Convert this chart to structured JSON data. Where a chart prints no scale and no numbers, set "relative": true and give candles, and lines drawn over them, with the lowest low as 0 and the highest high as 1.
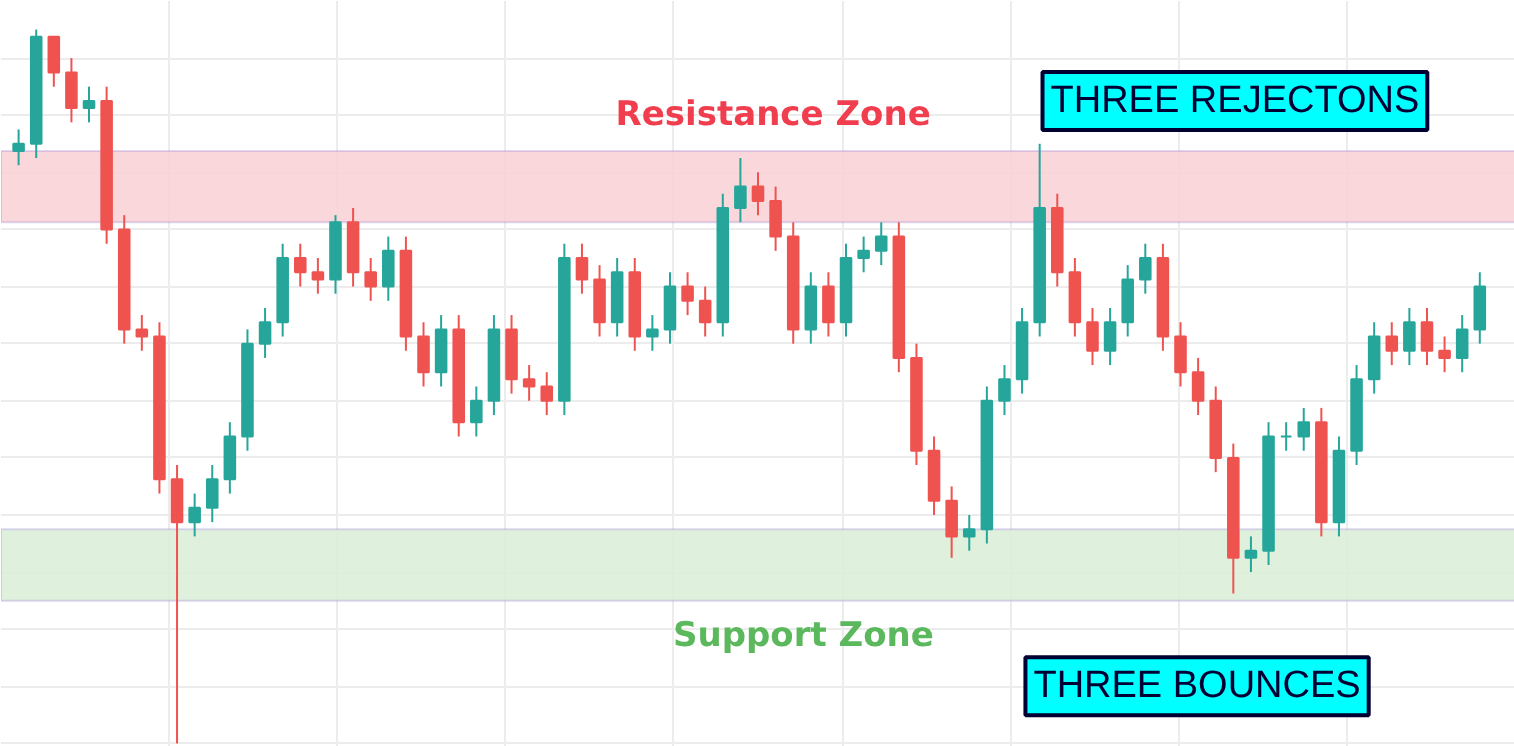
{
  "chart_data": {
    "type": "candlestick",
    "relative": true,
    "categories": [
      null,
      null,
      null,
      null,
      null,
      null,
      null,
      null,
      null,
      null,
      null,
      null,
      null,
      null,
      null,
      null,
      null,
      null,
      null,
      null,
      null,
      null,
      null,
      null,
      null,
      null,
      null,
      null,
      null,
      null,
      null,
      null,
      null,
      null,
      null,
      null,
      null,
      null,
      null,
      null,
      null,
      null,
      null,
      null,
      null,
      null,
      null,
      null,
      null,
      null,
      null,
      null,
      null,
      null,
      null,
      null,
      null,
      null,
      null,
      null,
      null,
      null,
      null,
      null,
      null,
      null,
      null,
      null,
      null,
      null,
      null,
      null,
      null,
      null,
      null,
      null,
      null,
      null,
      null,
      null,
      null,
      null,
      null,
      null
    ],
    "ohlc": [
      [
        0.83,
        0.86,
        0.81,
        0.84
      ],
      [
        0.84,
        1.0,
        0.82,
        0.99
      ],
      [
        0.99,
        0.99,
        0.92,
        0.94
      ],
      [
        0.94,
        0.96,
        0.87,
        0.89
      ],
      [
        0.89,
        0.92,
        0.87,
        0.9
      ],
      [
        0.9,
        0.92,
        0.7,
        0.72
      ],
      [
        0.72,
        0.74,
        0.56,
        0.58
      ],
      [
        0.58,
        0.6,
        0.55,
        0.57
      ],
      [
        0.57,
        0.59,
        0.35,
        0.37
      ],
      [
        0.37,
        0.39,
        0.0,
        0.31
      ],
      [
        0.31,
        0.35,
        0.29,
        0.33
      ],
      [
        0.33,
        0.39,
        0.31,
        0.37
      ],
      [
        0.37,
        0.45,
        0.35,
        0.43
      ],
      [
        0.43,
        0.58,
        0.41,
        0.56
      ],
      [
        0.56,
        0.61,
        0.54,
        0.59
      ],
      [
        0.59,
        0.7,
        0.57,
        0.68
      ],
      [
        0.68,
        0.7,
        0.64,
        0.66
      ],
      [
        0.66,
        0.68,
        0.63,
        0.65
      ],
      [
        0.65,
        0.74,
        0.63,
        0.73
      ],
      [
        0.73,
        0.75,
        0.64,
        0.66
      ],
      [
        0.66,
        0.68,
        0.62,
        0.64
      ],
      [
        0.64,
        0.71,
        0.62,
        0.69
      ],
      [
        0.69,
        0.71,
        0.55,
        0.57
      ],
      [
        0.57,
        0.59,
        0.5,
        0.52
      ],
      [
        0.52,
        0.6,
        0.5,
        0.58
      ],
      [
        0.58,
        0.6,
        0.43,
        0.45
      ],
      [
        0.45,
        0.5,
        0.43,
        0.48
      ],
      [
        0.48,
        0.6,
        0.46,
        0.58
      ],
      [
        0.58,
        0.6,
        0.49,
        0.51
      ],
      [
        0.51,
        0.53,
        0.48,
        0.5
      ],
      [
        0.5,
        0.52,
        0.46,
        0.48
      ],
      [
        0.48,
        0.7,
        0.46,
        0.68
      ],
      [
        0.68,
        0.7,
        0.63,
        0.65
      ],
      [
        0.65,
        0.67,
        0.57,
        0.59
      ],
      [
        0.59,
        0.68,
        0.57,
        0.66
      ],
      [
        0.66,
        0.68,
        0.55,
        0.57
      ],
      [
        0.57,
        0.6,
        0.55,
        0.58
      ],
      [
        0.58,
        0.66,
        0.56,
        0.64
      ],
      [
        0.64,
        0.66,
        0.6,
        0.62
      ],
      [
        0.62,
        0.64,
        0.57,
        0.59
      ],
      [
        0.59,
        0.77,
        0.57,
        0.75
      ],
      [
        0.75,
        0.82,
        0.73,
        0.78
      ],
      [
        0.78,
        0.8,
        0.74,
        0.76
      ],
      [
        0.76,
        0.78,
        0.69,
        0.71
      ],
      [
        0.71,
        0.73,
        0.56,
        0.58
      ],
      [
        0.58,
        0.66,
        0.56,
        0.64
      ],
      [
        0.64,
        0.66,
        0.57,
        0.59
      ],
      [
        0.59,
        0.7,
        0.57,
        0.68
      ],
      [
        0.68,
        0.71,
        0.66,
        0.69
      ],
      [
        0.69,
        0.73,
        0.67,
        0.71
      ],
      [
        0.71,
        0.73,
        0.52,
        0.54
      ],
      [
        0.54,
        0.56,
        0.39,
        0.41
      ],
      [
        0.41,
        0.43,
        0.32,
        0.34
      ],
      [
        0.34,
        0.36,
        0.26,
        0.29
      ],
      [
        0.29,
        0.32,
        0.27,
        0.3
      ],
      [
        0.3,
        0.5,
        0.28,
        0.48
      ],
      [
        0.48,
        0.53,
        0.46,
        0.51
      ],
      [
        0.51,
        0.61,
        0.49,
        0.59
      ],
      [
        0.59,
        0.84,
        0.57,
        0.75
      ],
      [
        0.75,
        0.77,
        0.64,
        0.66
      ],
      [
        0.66,
        0.68,
        0.57,
        0.59
      ],
      [
        0.59,
        0.61,
        0.53,
        0.55
      ],
      [
        0.55,
        0.61,
        0.53,
        0.59
      ],
      [
        0.59,
        0.67,
        0.57,
        0.65
      ],
      [
        0.65,
        0.7,
        0.63,
        0.68
      ],
      [
        0.68,
        0.7,
        0.55,
        0.57
      ],
      [
        0.57,
        0.59,
        0.5,
        0.52
      ],
      [
        0.52,
        0.54,
        0.46,
        0.48
      ],
      [
        0.48,
        0.5,
        0.38,
        0.4
      ],
      [
        0.4,
        0.42,
        0.21,
        0.26
      ],
      [
        0.26,
        0.29,
        0.24,
        0.27
      ],
      [
        0.27,
        0.45,
        0.25,
        0.43
      ],
      [
        0.43,
        0.45,
        0.41,
        0.43
      ],
      [
        0.43,
        0.47,
        0.41,
        0.45
      ],
      [
        0.45,
        0.47,
        0.29,
        0.31
      ],
      [
        0.31,
        0.43,
        0.29,
        0.41
      ],
      [
        0.41,
        0.53,
        0.39,
        0.51
      ],
      [
        0.51,
        0.59,
        0.49,
        0.57
      ],
      [
        0.57,
        0.59,
        0.53,
        0.55
      ],
      [
        0.55,
        0.61,
        0.53,
        0.59
      ],
      [
        0.59,
        0.61,
        0.53,
        0.55
      ],
      [
        0.55,
        0.57,
        0.52,
        0.54
      ],
      [
        0.54,
        0.6,
        0.52,
        0.58
      ],
      [
        0.58,
        0.66,
        0.56,
        0.64
      ]
    ],
    "colors": [
      "#26a69a",
      "#26a69a",
      "#ef5350",
      "#ef5350",
      "#26a69a",
      "#ef5350",
      "#ef5350",
      "#ef5350",
      "#ef5350",
      "#ef5350",
      "#26a69a",
      "#26a69a",
      "#26a69a",
      "#26a69a",
      "#26a69a",
      "#26a69a",
      "#ef5350",
      "#ef5350",
      "#26a69a",
      "#ef5350",
      "#ef5350",
      "#26a69a",
      "#ef5350",
      "#ef5350",
      "#26a69a",
      "#ef5350",
      "#26a69a",
      "#26a69a",
      "#ef5350",
      "#ef5350",
      "#ef5350",
      "#26a69a",
      "#ef5350",
      "#ef5350",
      "#26a69a",
      "#ef5350",
      "#26a69a",
      "#26a69a",
      "#ef5350",
      "#ef5350",
      "#26a69a",
      "#26a69a",
      "#ef5350",
      "#ef5350",
      "#ef5350",
      "#26a69a",
      "#ef5350",
      "#26a69a",
      "#26a69a",
      "#26a69a",
      "#ef5350",
      "#ef5350",
      "#ef5350",
      "#ef5350",
      "#26a69a",
      "#26a69a",
      "#26a69a",
      "#26a69a",
      "#26a69a",
      "#ef5350",
      "#ef5350",
      "#ef5350",
      "#26a69a",
      "#26a69a",
      "#26a69a",
      "#ef5350",
      "#ef5350",
      "#ef5350",
      "#ef5350",
      "#ef5350",
      "#26a69a",
      "#26a69a",
      "#26a69a",
      "#26a69a",
      "#ef5350",
      "#26a69a",
      "#26a69a",
      "#26a69a",
      "#ef5350",
      "#26a69a",
      "#ef5350",
      "#ef5350",
      "#26a69a",
      "#26a69a"
    ],
    "bands": [
      {
        "axis": "y",
        "from": 0.73,
        "to": 0.83,
        "label": "Resistance Zone",
        "color": "#f8d3d7"
      },
      {
        "axis": "y",
        "from": 0.2,
        "to": 0.3,
        "label": "Support Zone",
        "color": "#dcefd9"
      }
    ],
    "annotations": [
      "THREE REJECTONS",
      "THREE BOUNCES"
    ],
    "grid": true
  }
}
